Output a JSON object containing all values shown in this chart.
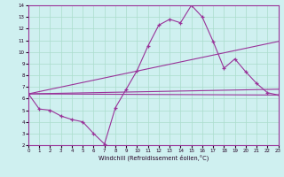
{
  "xlabel": "Windchill (Refroidissement éolien,°C)",
  "xlim": [
    0,
    23
  ],
  "ylim": [
    2,
    14
  ],
  "xticks": [
    0,
    1,
    2,
    3,
    4,
    5,
    6,
    7,
    8,
    9,
    10,
    11,
    12,
    13,
    14,
    15,
    16,
    17,
    18,
    19,
    20,
    21,
    22,
    23
  ],
  "yticks": [
    2,
    3,
    4,
    5,
    6,
    7,
    8,
    9,
    10,
    11,
    12,
    13,
    14
  ],
  "bg_color": "#cff0f0",
  "line_color": "#993399",
  "grid_color": "#aaddcc",
  "line1_x": [
    0,
    1,
    2,
    3,
    4,
    5,
    6,
    7,
    8,
    9,
    10,
    11,
    12,
    13,
    14,
    15,
    16,
    17,
    18,
    19,
    20,
    21,
    22,
    23
  ],
  "line1_y": [
    6.4,
    5.1,
    5.0,
    4.5,
    4.2,
    4.0,
    3.0,
    2.1,
    5.2,
    6.8,
    8.4,
    10.5,
    12.3,
    12.8,
    12.5,
    14.0,
    13.0,
    10.9,
    8.6,
    9.4,
    8.3,
    7.3,
    6.5,
    6.3
  ],
  "line2_x": [
    0,
    23
  ],
  "line2_y": [
    6.4,
    6.3
  ],
  "line3_x": [
    0,
    23
  ],
  "line3_y": [
    6.4,
    10.9
  ],
  "line4_x": [
    0,
    23
  ],
  "line4_y": [
    6.4,
    6.8
  ]
}
